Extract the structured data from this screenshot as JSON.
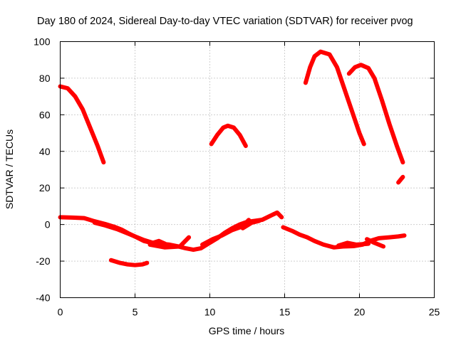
{
  "chart_data": {
    "type": "line",
    "title": "Day 180 of 2024, Sidereal Day-to-day VTEC variation (SDTVAR) for receiver pvog",
    "xlabel": "GPS time / hours",
    "ylabel": "SDTVAR / TECUs",
    "xlim": [
      0,
      25
    ],
    "ylim": [
      -40,
      100
    ],
    "xticks": [
      0,
      5,
      10,
      15,
      20,
      25
    ],
    "yticks": [
      -40,
      -20,
      0,
      20,
      40,
      60,
      80,
      100
    ],
    "grid": true,
    "legend": "none",
    "colors": {
      "series": "#ff0000",
      "grid": "#a0a0a0",
      "axis": "#000000"
    },
    "series": [
      {
        "name": "arc-1",
        "points": [
          [
            0,
            75.5
          ],
          [
            0.5,
            74.5
          ],
          [
            1,
            70
          ],
          [
            1.5,
            63
          ],
          [
            2,
            53
          ],
          [
            2.5,
            43
          ],
          [
            2.9,
            34
          ]
        ]
      },
      {
        "name": "arc-2",
        "points": [
          [
            3.4,
            -19.5
          ],
          [
            4,
            -21
          ],
          [
            4.5,
            -21.8
          ],
          [
            5,
            -22.2
          ],
          [
            5.5,
            -21.8
          ],
          [
            5.8,
            -21
          ]
        ]
      },
      {
        "name": "arc-3",
        "points": [
          [
            10.1,
            44
          ],
          [
            10.5,
            49
          ],
          [
            10.9,
            53
          ],
          [
            11.2,
            54
          ],
          [
            11.6,
            53
          ],
          [
            12,
            49
          ],
          [
            12.4,
            43
          ]
        ]
      },
      {
        "name": "arc-4",
        "points": [
          [
            16.4,
            77.5
          ],
          [
            16.7,
            86
          ],
          [
            17,
            92
          ],
          [
            17.4,
            94.5
          ],
          [
            18,
            93
          ],
          [
            18.5,
            86
          ],
          [
            19,
            74
          ],
          [
            19.5,
            62
          ],
          [
            20,
            50
          ],
          [
            20.3,
            44
          ]
        ]
      },
      {
        "name": "arc-5",
        "points": [
          [
            19.3,
            82.5
          ],
          [
            19.7,
            86
          ],
          [
            20.1,
            87.3
          ],
          [
            20.6,
            85.5
          ],
          [
            21,
            80
          ],
          [
            21.5,
            68
          ],
          [
            22,
            55
          ],
          [
            22.5,
            43
          ],
          [
            22.9,
            34
          ]
        ]
      },
      {
        "name": "arc-6",
        "points": [
          [
            22.6,
            23
          ],
          [
            22.9,
            26
          ]
        ]
      },
      {
        "name": "arc-7",
        "points": [
          [
            0,
            4
          ],
          [
            0.8,
            3.8
          ],
          [
            1.6,
            3.5
          ],
          [
            2.2,
            2
          ],
          [
            3,
            0.3
          ],
          [
            3.6,
            -1.2
          ],
          [
            4.1,
            -2.8
          ],
          [
            4.6,
            -5
          ],
          [
            5.1,
            -7
          ],
          [
            5.6,
            -9
          ],
          [
            6.1,
            -10
          ],
          [
            6.7,
            -10.5
          ],
          [
            7.3,
            -11
          ],
          [
            7.9,
            -12
          ],
          [
            8.4,
            -13
          ],
          [
            8.9,
            -13.8
          ],
          [
            9.4,
            -13
          ],
          [
            9.9,
            -10.5
          ],
          [
            10.5,
            -7.5
          ],
          [
            11,
            -4.5
          ],
          [
            11.5,
            -2
          ],
          [
            12,
            0
          ],
          [
            12.5,
            1.5
          ],
          [
            13,
            2
          ],
          [
            13.5,
            2.6
          ],
          [
            14.1,
            5
          ],
          [
            14.5,
            6.5
          ],
          [
            14.8,
            4
          ]
        ]
      },
      {
        "name": "arc-8",
        "points": [
          [
            2.3,
            1
          ],
          [
            3,
            -0.5
          ],
          [
            3.8,
            -2.5
          ],
          [
            4.4,
            -4.5
          ],
          [
            5,
            -6.5
          ],
          [
            5.6,
            -8.5
          ],
          [
            6.2,
            -10
          ],
          [
            6.6,
            -9
          ],
          [
            7,
            -10.5
          ]
        ]
      },
      {
        "name": "arc-9",
        "points": [
          [
            6,
            -11
          ],
          [
            7,
            -12.5
          ],
          [
            8,
            -12
          ],
          [
            8.6,
            -7
          ]
        ]
      },
      {
        "name": "arc-10",
        "points": [
          [
            9.5,
            -11
          ],
          [
            10.2,
            -8
          ],
          [
            10.8,
            -6
          ],
          [
            11.5,
            -3
          ],
          [
            12.2,
            -1
          ],
          [
            12.6,
            2.5
          ]
        ]
      },
      {
        "name": "arc-11",
        "points": [
          [
            12.2,
            -2
          ],
          [
            12.8,
            1
          ],
          [
            13.3,
            2
          ]
        ]
      },
      {
        "name": "arc-12",
        "points": [
          [
            14.9,
            -1.5
          ],
          [
            15.5,
            -3.5
          ],
          [
            16,
            -5.5
          ],
          [
            16.5,
            -7
          ],
          [
            17,
            -9
          ],
          [
            17.6,
            -11
          ],
          [
            18.3,
            -12.5
          ],
          [
            18.9,
            -12
          ],
          [
            19.6,
            -11.8
          ],
          [
            20.2,
            -11
          ],
          [
            20.7,
            -9
          ],
          [
            21.3,
            -7.5
          ],
          [
            22,
            -7
          ],
          [
            22.6,
            -6.5
          ],
          [
            23,
            -6
          ]
        ]
      },
      {
        "name": "arc-13",
        "points": [
          [
            18.6,
            -11.5
          ],
          [
            19.2,
            -10
          ],
          [
            19.8,
            -11
          ],
          [
            20.6,
            -10.5
          ]
        ]
      },
      {
        "name": "arc-14",
        "points": [
          [
            20.5,
            -8
          ],
          [
            21,
            -10
          ],
          [
            21.6,
            -12
          ]
        ]
      }
    ]
  }
}
